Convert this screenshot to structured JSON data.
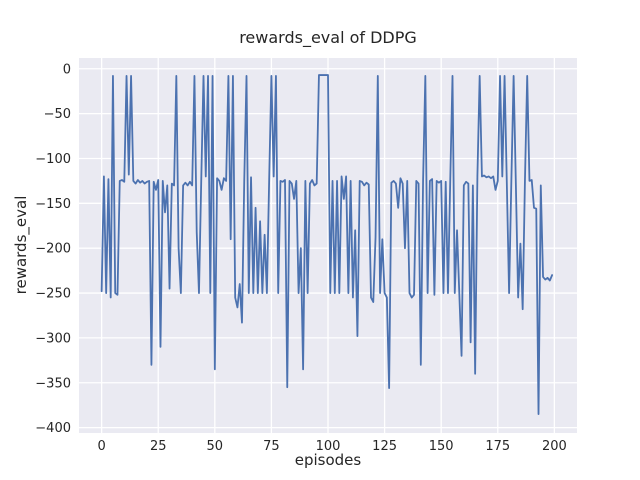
{
  "figure": {
    "title": "rewards_eval of DDPG",
    "xlabel": "episodes",
    "ylabel": "rewards_eval"
  },
  "chart_data": {
    "type": "line",
    "title": "rewards_eval of DDPG",
    "xlabel": "episodes",
    "ylabel": "rewards_eval",
    "x_ticks": [
      0,
      25,
      50,
      75,
      100,
      125,
      150,
      175,
      200
    ],
    "y_ticks": [
      0,
      -50,
      -100,
      -150,
      -200,
      -250,
      -300,
      -350,
      -400
    ],
    "xlim": [
      -10,
      210
    ],
    "ylim": [
      -406,
      12
    ],
    "grid": true,
    "legend": false,
    "style": {
      "fig_bg": "#ffffff",
      "plot_bg": "#eaeaf2",
      "grid_color": "#ffffff",
      "text_color": "#262626",
      "line_color": "#4c72b0",
      "line_width": 1.8
    },
    "series": [
      {
        "name": "rewards_eval",
        "color": "#4c72b0",
        "x_start": 0,
        "x_step": 1,
        "values": [
          -248,
          -120,
          -250,
          -123,
          -255,
          -8,
          -250,
          -252,
          -125,
          -124,
          -126,
          -8,
          -118,
          -8,
          -125,
          -128,
          -124,
          -127,
          -125,
          -128,
          -126,
          -125,
          -330,
          -126,
          -135,
          -124,
          -310,
          -125,
          -160,
          -130,
          -245,
          -128,
          -130,
          -8,
          -200,
          -250,
          -130,
          -127,
          -130,
          -126,
          -130,
          -8,
          -182,
          -250,
          -125,
          -8,
          -120,
          -8,
          -250,
          -8,
          -335,
          -122,
          -125,
          -135,
          -122,
          -125,
          -8,
          -190,
          -8,
          -255,
          -266,
          -240,
          -283,
          -125,
          -8,
          -250,
          -121,
          -250,
          -155,
          -250,
          -170,
          -250,
          -185,
          -250,
          -125,
          -8,
          -120,
          -8,
          -250,
          -125,
          -126,
          -124,
          -355,
          -125,
          -128,
          -145,
          -125,
          -250,
          -200,
          -335,
          -125,
          -250,
          -128,
          -124,
          -130,
          -128,
          -7,
          -7,
          -7,
          -7,
          -7,
          -250,
          -125,
          -250,
          -125,
          -250,
          -120,
          -145,
          -120,
          -250,
          -125,
          -255,
          -180,
          -298,
          -125,
          -126,
          -130,
          -127,
          -129,
          -255,
          -260,
          -188,
          -8,
          -250,
          -190,
          -250,
          -255,
          -356,
          -127,
          -125,
          -128,
          -155,
          -122,
          -128,
          -200,
          -125,
          -250,
          -255,
          -252,
          -125,
          -128,
          -330,
          -125,
          -8,
          -250,
          -125,
          -123,
          -252,
          -125,
          -127,
          -125,
          -250,
          -126,
          -250,
          -125,
          -8,
          -250,
          -180,
          -250,
          -320,
          -130,
          -126,
          -128,
          -305,
          -130,
          -340,
          -120,
          -8,
          -120,
          -119,
          -121,
          -120,
          -122,
          -120,
          -135,
          -125,
          -8,
          -120,
          -8,
          -128,
          -250,
          -125,
          -8,
          -130,
          -255,
          -195,
          -268,
          -125,
          -8,
          -125,
          -124,
          -155,
          -156,
          -385,
          -130,
          -232,
          -235,
          -233,
          -236,
          -230
        ]
      }
    ]
  }
}
